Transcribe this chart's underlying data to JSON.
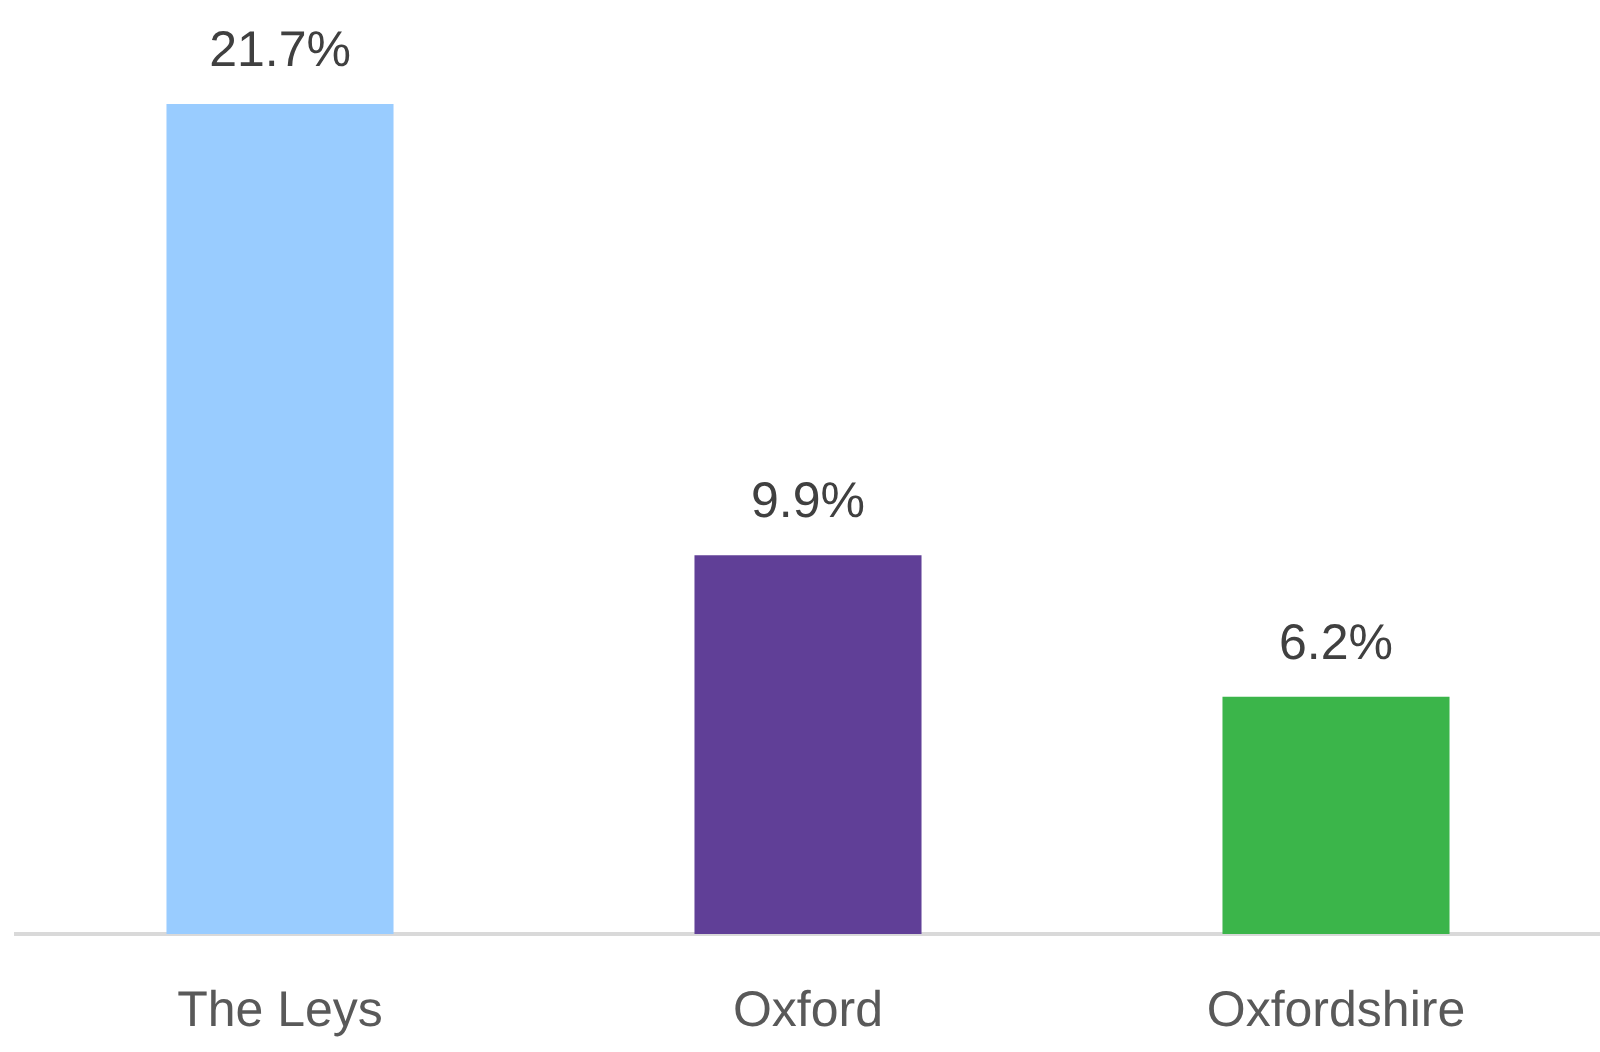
{
  "chart_data": {
    "type": "bar",
    "categories": [
      "The Leys",
      "Oxford",
      "Oxfordshire"
    ],
    "values": [
      21.7,
      9.9,
      6.2
    ],
    "colors": [
      "#99ccff",
      "#603f97",
      "#3bb54a"
    ],
    "value_labels": [
      "21.7%",
      "9.9%",
      "6.2%"
    ]
  }
}
